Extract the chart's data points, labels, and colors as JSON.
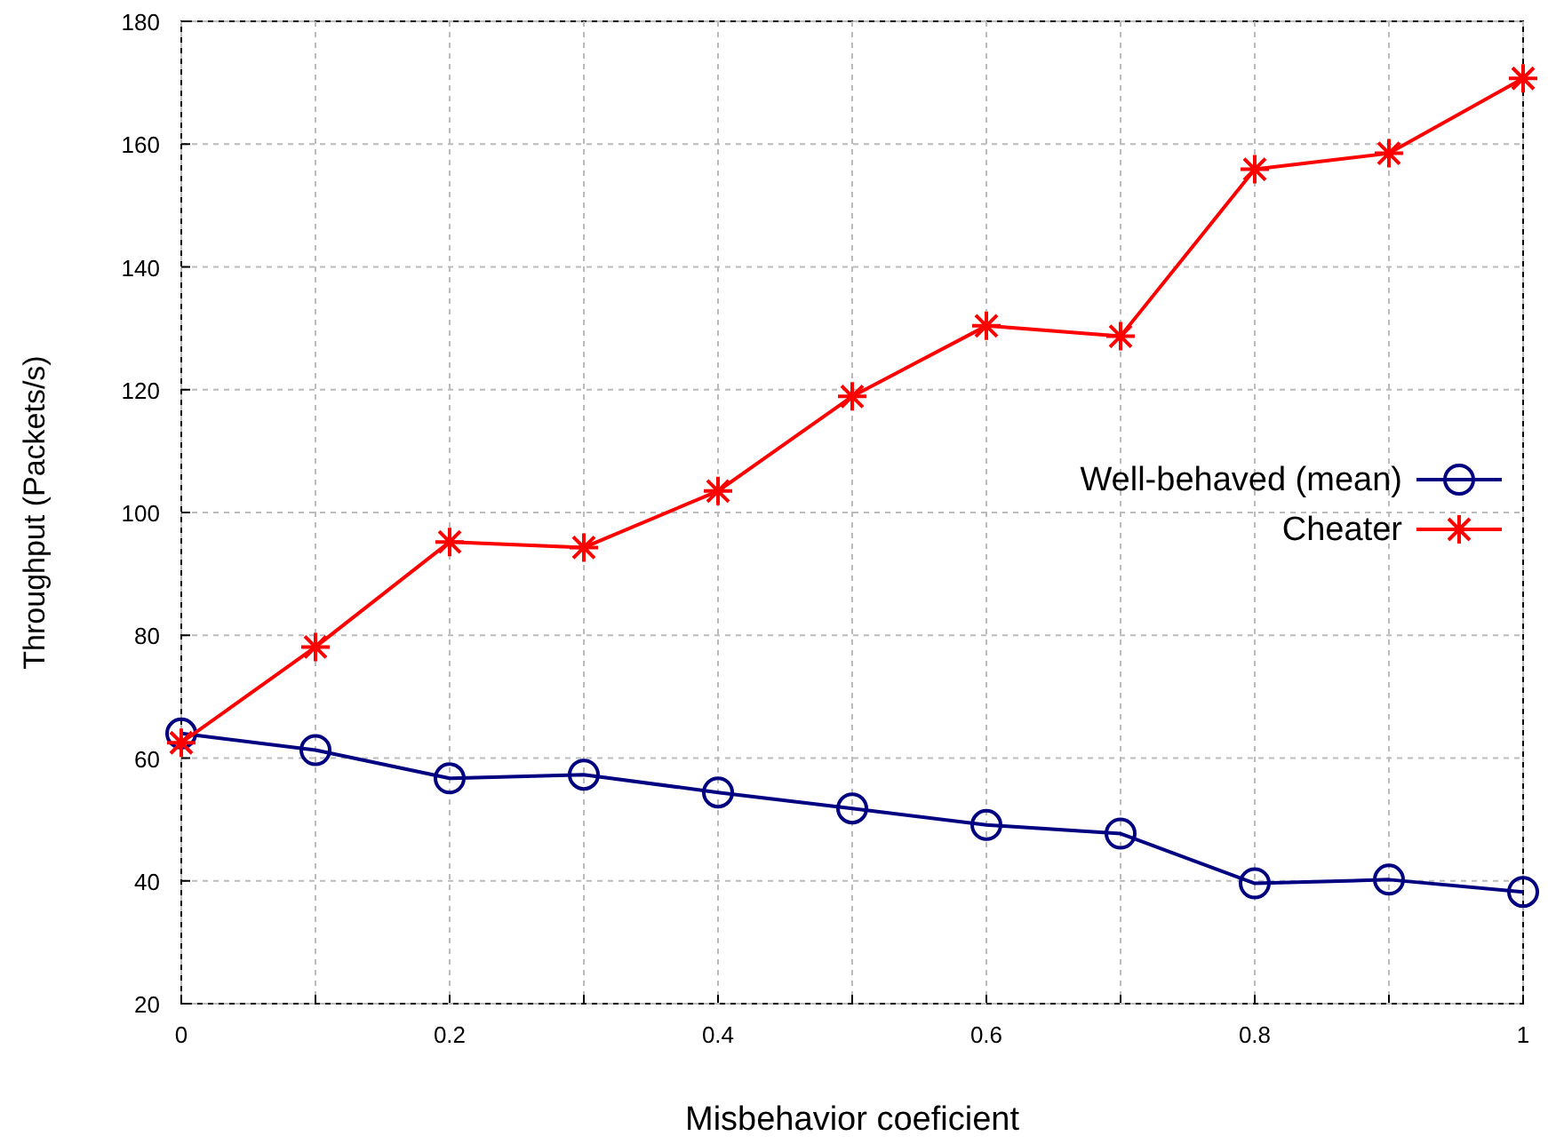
{
  "chart_data": {
    "type": "line",
    "xlabel": "Misbehavior coeficient",
    "ylabel": "Throughput (Packets/s)",
    "x": [
      0,
      0.1,
      0.2,
      0.3,
      0.4,
      0.5,
      0.6,
      0.7,
      0.8,
      0.9,
      1
    ],
    "series": [
      {
        "name": "Well-behaved (mean)",
        "color": "#000080",
        "marker": "circle",
        "values": [
          64,
          61.3,
          56.7,
          57.3,
          54.4,
          51.8,
          49.1,
          47.7,
          39.6,
          40.2,
          38.2
        ]
      },
      {
        "name": "Cheater",
        "color": "#ff0000",
        "marker": "cross",
        "values": [
          62.5,
          78.1,
          95.2,
          94.3,
          103.5,
          118.9,
          130.4,
          128.7,
          155.9,
          158.5,
          170.7
        ]
      }
    ],
    "xlim": [
      0,
      1
    ],
    "xticks": [
      0,
      {
        "value": 0.1,
        "label": null
      },
      0.2,
      {
        "value": 0.3,
        "label": null
      },
      0.4,
      {
        "value": 0.5,
        "label": null
      },
      0.6,
      {
        "value": 0.7,
        "label": null
      },
      0.8,
      {
        "value": 0.9,
        "label": null
      },
      1
    ],
    "ylim": [
      20,
      180
    ],
    "yticks": [
      20,
      40,
      60,
      80,
      100,
      120,
      140,
      160,
      180
    ],
    "grid": true,
    "legend": "right",
    "line_style": "solid"
  }
}
